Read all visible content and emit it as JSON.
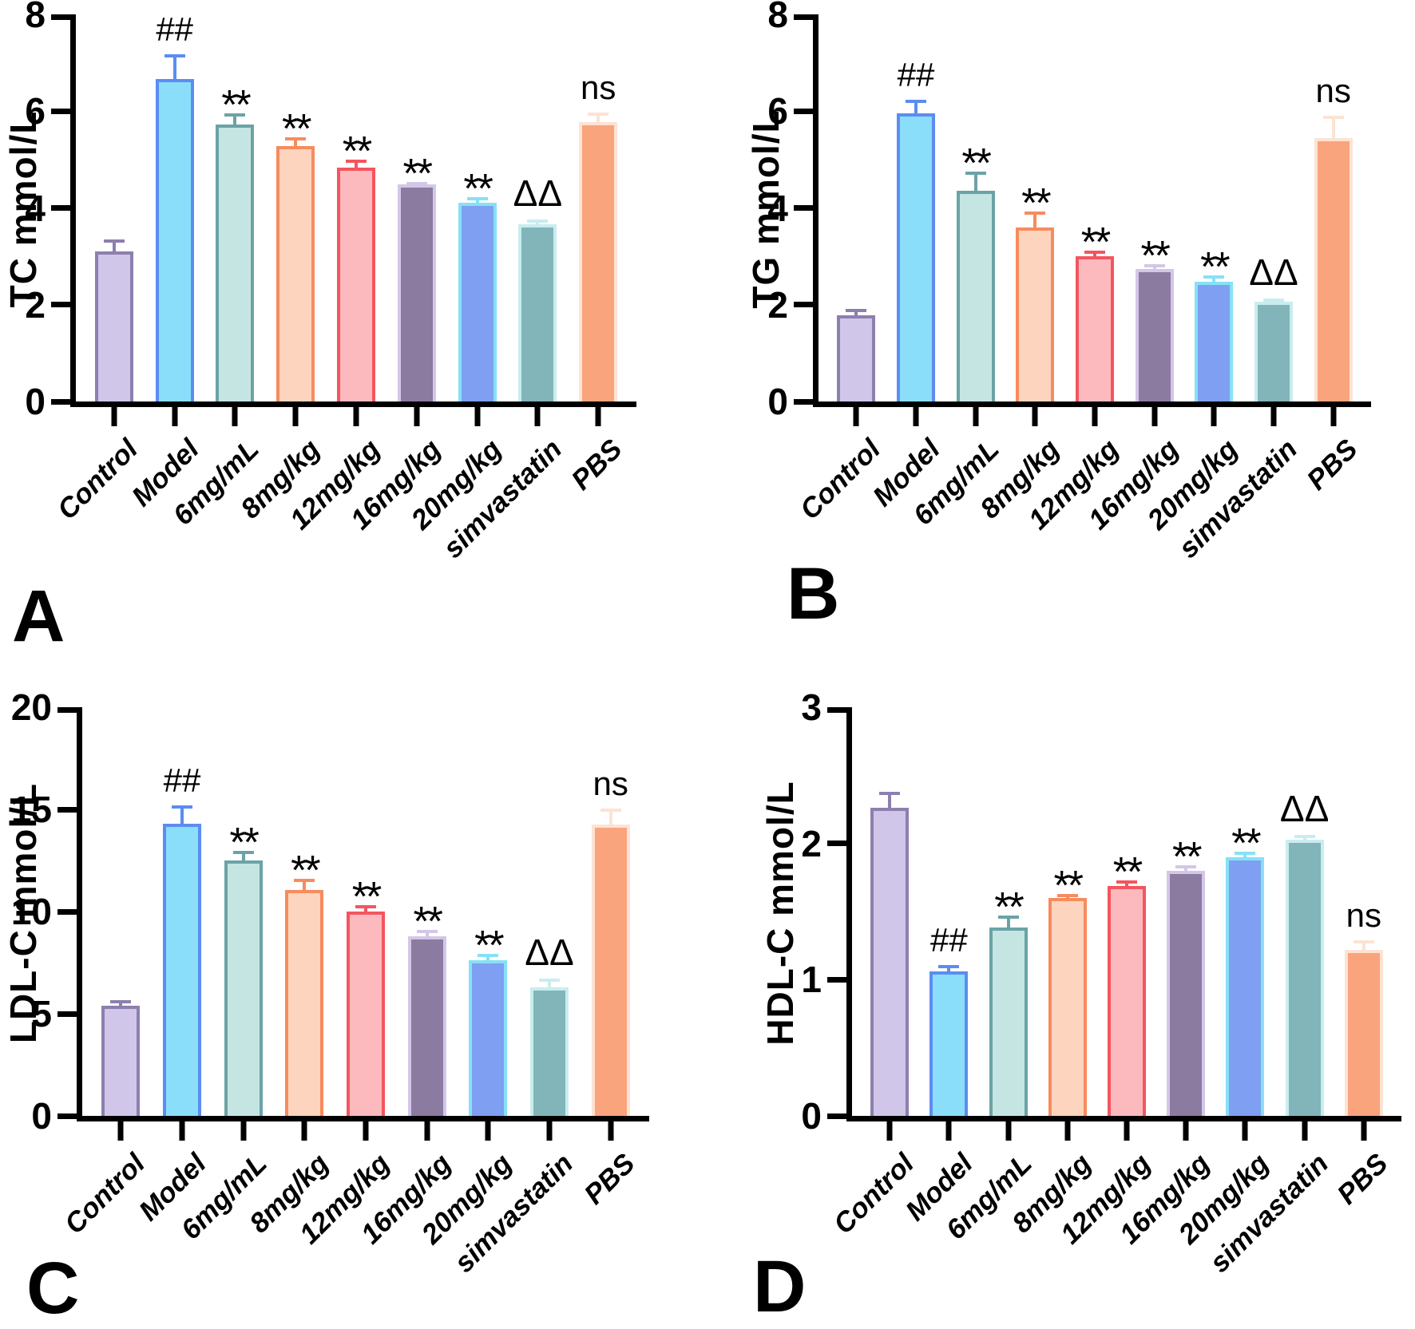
{
  "figure": {
    "background_color": "#ffffff",
    "text_color": "#000000",
    "categories": [
      "Control",
      "Model",
      "6mg/mL",
      "8mg/kg",
      "12mg/kg",
      "16mg/kg",
      "20mg/kg",
      "simvastatin",
      "PBS"
    ],
    "significance_annotations": [
      "",
      "##",
      "**",
      "**",
      "**",
      "**",
      "**",
      "ΔΔ",
      "ns"
    ],
    "bar_styles": [
      {
        "category": "Control",
        "fill": "#cfc6e9",
        "edge": "#8d7fae"
      },
      {
        "category": "Model",
        "fill": "#8bdefa",
        "edge": "#5b8df1"
      },
      {
        "category": "6mg/mL",
        "fill": "#c5e5e3",
        "edge": "#6ba3a5"
      },
      {
        "category": "8mg/kg",
        "fill": "#fdd4be",
        "edge": "#f78b5d"
      },
      {
        "category": "12mg/kg",
        "fill": "#fdbabe",
        "edge": "#f4555f"
      },
      {
        "category": "16mg/kg",
        "fill": "#8b7ba1",
        "edge": "#d3c7e8"
      },
      {
        "category": "20mg/kg",
        "fill": "#7e9ff2",
        "edge": "#86e1f6"
      },
      {
        "category": "simvastatin",
        "fill": "#81b5ba",
        "edge": "#c9edef"
      },
      {
        "category": "PBS",
        "fill": "#f9a47c",
        "edge": "#fde3d4"
      }
    ]
  },
  "chart_data": [
    {
      "type": "bar",
      "panel": "A",
      "title": "",
      "xlabel": "",
      "ylabel": "TC mmol/L",
      "ylim": [
        0,
        8
      ],
      "yticks": [
        0,
        2,
        4,
        6,
        8
      ],
      "grid": false,
      "error_bars": "upward SEM with caps",
      "categories": [
        "Control",
        "Model",
        "6mg/mL",
        "8mg/kg",
        "12mg/kg",
        "16mg/kg",
        "20mg/kg",
        "simvastatin",
        "PBS"
      ],
      "values": [
        3.1,
        6.67,
        5.73,
        5.28,
        4.83,
        4.48,
        4.11,
        3.67,
        5.77
      ],
      "errors": [
        0.25,
        0.5,
        0.22,
        0.18,
        0.16,
        0.06,
        0.12,
        0.09,
        0.2
      ],
      "annotations": [
        "",
        "##",
        "**",
        "**",
        "**",
        "**",
        "**",
        "ΔΔ",
        "ns"
      ]
    },
    {
      "type": "bar",
      "panel": "B",
      "title": "",
      "xlabel": "",
      "ylabel": "TG mmol/L",
      "ylim": [
        0,
        8
      ],
      "yticks": [
        0,
        2,
        4,
        6,
        8
      ],
      "grid": false,
      "error_bars": "upward SEM with caps",
      "categories": [
        "Control",
        "Model",
        "6mg/mL",
        "8mg/kg",
        "12mg/kg",
        "16mg/kg",
        "20mg/kg",
        "simvastatin",
        "PBS"
      ],
      "values": [
        1.78,
        5.96,
        4.35,
        3.6,
        3.0,
        2.74,
        2.47,
        2.07,
        5.45
      ],
      "errors": [
        0.14,
        0.28,
        0.4,
        0.33,
        0.12,
        0.1,
        0.13,
        0.05,
        0.45
      ],
      "annotations": [
        "",
        "##",
        "**",
        "**",
        "**",
        "**",
        "**",
        "ΔΔ",
        "ns"
      ]
    },
    {
      "type": "bar",
      "panel": "C",
      "title": "",
      "xlabel": "",
      "ylabel": "LDL-C mmol/L",
      "ylim": [
        0,
        20
      ],
      "yticks": [
        0,
        5,
        10,
        15,
        20
      ],
      "grid": false,
      "error_bars": "upward SEM with caps",
      "categories": [
        "Control",
        "Model",
        "6mg/mL",
        "8mg/kg",
        "12mg/kg",
        "16mg/kg",
        "20mg/kg",
        "simvastatin",
        "PBS"
      ],
      "values": [
        5.4,
        14.3,
        12.5,
        11.05,
        10.0,
        8.8,
        7.6,
        6.3,
        14.25
      ],
      "errors": [
        0.27,
        0.9,
        0.46,
        0.55,
        0.3,
        0.3,
        0.33,
        0.4,
        0.8
      ],
      "annotations": [
        "",
        "##",
        "**",
        "**",
        "**",
        "**",
        "**",
        "ΔΔ",
        "ns"
      ]
    },
    {
      "type": "bar",
      "panel": "D",
      "title": "",
      "xlabel": "",
      "ylabel": "HDL-C mmol/L",
      "ylim": [
        0,
        3
      ],
      "yticks": [
        0,
        1,
        2,
        3
      ],
      "grid": false,
      "error_bars": "upward SEM with caps",
      "categories": [
        "Control",
        "Model",
        "6mg/mL",
        "8mg/kg",
        "12mg/kg",
        "16mg/kg",
        "20mg/kg",
        "simvastatin",
        "PBS"
      ],
      "values": [
        2.26,
        1.06,
        1.38,
        1.6,
        1.69,
        1.8,
        1.9,
        2.03,
        1.22
      ],
      "errors": [
        0.12,
        0.05,
        0.09,
        0.03,
        0.04,
        0.04,
        0.04,
        0.03,
        0.07
      ],
      "annotations": [
        "",
        "##",
        "**",
        "**",
        "**",
        "**",
        "**",
        "ΔΔ",
        "ns"
      ]
    }
  ]
}
